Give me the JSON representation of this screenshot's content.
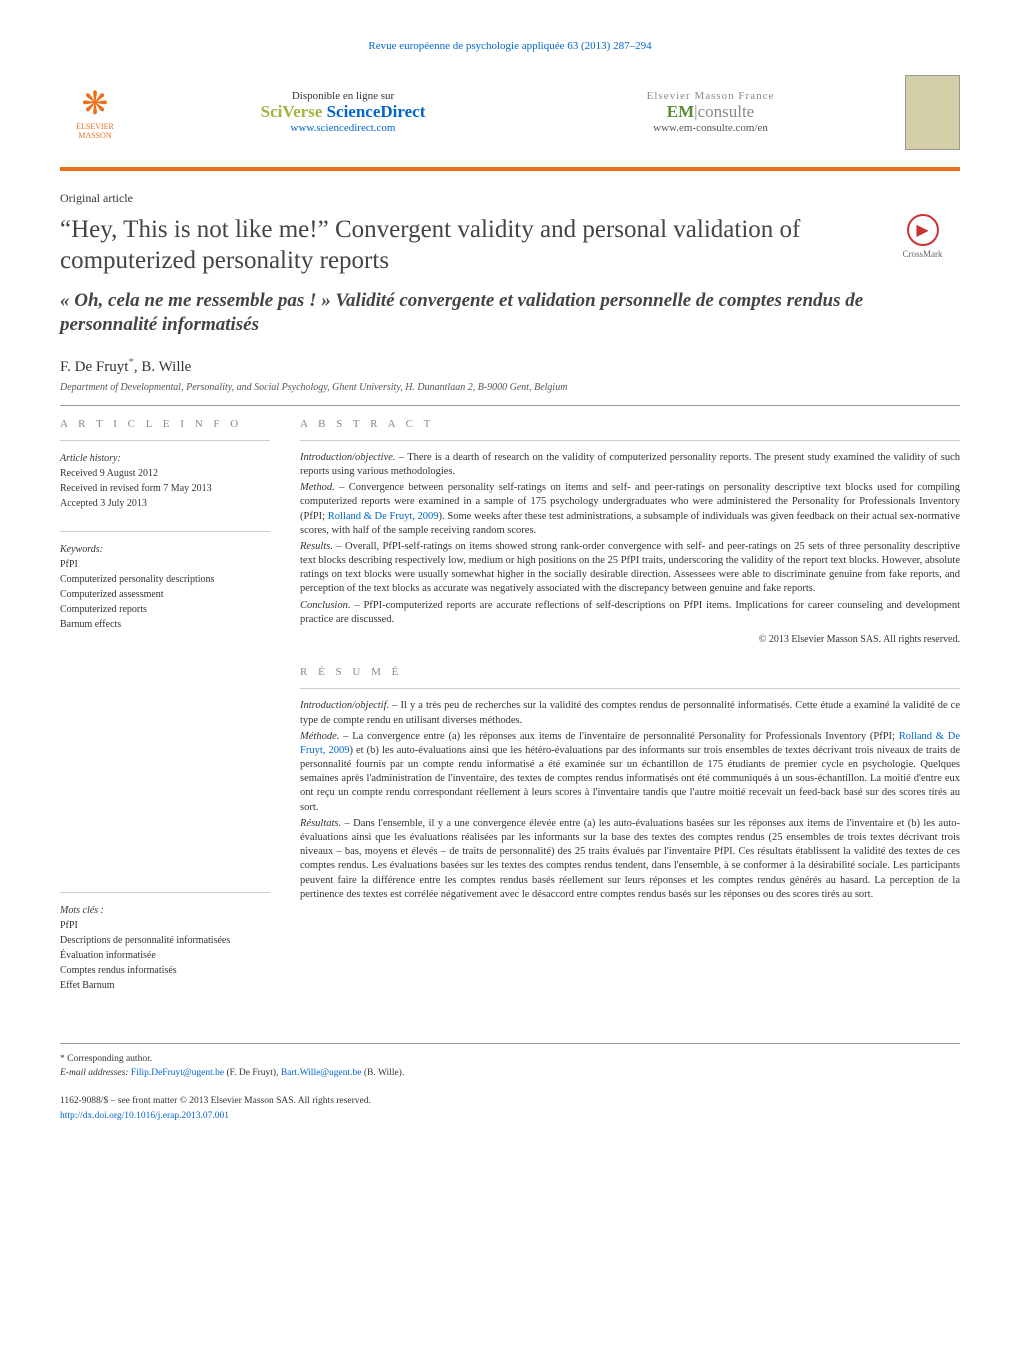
{
  "journal": {
    "citation": "Revue européenne de psychologie appliquée 63 (2013) 287–294",
    "publisher_name": "ELSEVIER MASSON",
    "sciencedirect": {
      "available": "Disponible en ligne sur",
      "brand_sci": "SciVerse",
      "brand_sd": " ScienceDirect",
      "url": "www.sciencedirect.com"
    },
    "emconsulte": {
      "brand_top": "Elsevier Masson France",
      "brand_em": "EM",
      "brand_consulte": "consulte",
      "url": "www.em-consulte.com/en"
    },
    "header_border_color": "#e9711c"
  },
  "article": {
    "type": "Original article",
    "title_en": "“Hey, This is not like me!” Convergent validity and personal validation of computerized personality reports",
    "title_fr": "« Oh, cela ne me ressemble pas ! » Validité convergente et validation personnelle de comptes rendus de personnalité informatisés",
    "crossmark": "CrossMark",
    "authors": "F. De Fruyt*, B. Wille",
    "affiliation": "Department of Developmental, Personality, and Social Psychology, Ghent University, H. Dunantlaan 2, B-9000 Gent, Belgium"
  },
  "info": {
    "heading": "A R T I C L E    I N F O",
    "history_label": "Article history:",
    "received": "Received 9 August 2012",
    "revised": "Received in revised form 7 May 2013",
    "accepted": "Accepted 3 July 2013",
    "keywords_label": "Keywords:",
    "keywords": [
      "PfPI",
      "Computerized personality descriptions",
      "Computerized assessment",
      "Computerized reports",
      "Barnum effects"
    ],
    "motscles_label": "Mots clés :",
    "motscles": [
      "PfPI",
      "Descriptions de personnalité informatisées",
      "Évaluation informatisée",
      "Comptes rendus informatisés",
      "Effet Barnum"
    ]
  },
  "abstract": {
    "heading": "A B S T R A C T",
    "intro_label": "Introduction/objective. – ",
    "intro": "There is a dearth of research on the validity of computerized personality reports. The present study examined the validity of such reports using various methodologies.",
    "method_label": "Method. – ",
    "method_pre": "Convergence between personality self-ratings on items and self- and peer-ratings on personality descriptive text blocks used for compiling computerized reports were examined in a sample of 175 psychology undergraduates who were administered the Personality for Professionals Inventory (PfPI; ",
    "method_ref": "Rolland & De Fruyt, 2009",
    "method_post": "). Some weeks after these test administrations, a subsample of individuals was given feedback on their actual sex-normative scores, with half of the sample receiving random scores.",
    "results_label": "Results. – ",
    "results": "Overall, PfPI-self-ratings on items showed strong rank-order convergence with self- and peer-ratings on 25 sets of three personality descriptive text blocks describing respectively low, medium or high positions on the 25 PfPI traits, underscoring the validity of the report text blocks. However, absolute ratings on text blocks were usually somewhat higher in the socially desirable direction. Assessees were able to discriminate genuine from fake reports, and perception of the text blocks as accurate was negatively associated with the discrepancy between genuine and fake reports.",
    "conclusion_label": "Conclusion. – ",
    "conclusion": "PfPI-computerized reports are accurate reflections of self-descriptions on PfPI items. Implications for career counseling and development practice are discussed.",
    "copyright": "© 2013 Elsevier Masson SAS. All rights reserved."
  },
  "resume": {
    "heading": "R É S U M É",
    "intro_label": "Introduction/objectif. – ",
    "intro": "Il y a très peu de recherches sur la validité des comptes rendus de personnalité informatisés. Cette étude a examiné la validité de ce type de compte rendu en utilisant diverses méthodes.",
    "method_label": "Méthode. – ",
    "method_pre": "La convergence entre (a) les réponses aux items de l'inventaire de personnalité Personality for Professionals Inventory (PfPI; ",
    "method_ref": "Rolland & De Fruyt, 2009",
    "method_post": ") et (b) les auto-évaluations ainsi que les hétéro-évaluations par des informants sur trois ensembles de textes décrivant trois niveaux de traits de personnalité fournis par un compte rendu informatisé a été examinée sur un échantillon de 175 étudiants de premier cycle en psychologie. Quelques semaines après l'administration de l'inventaire, des textes de comptes rendus informatisés ont été communiqués à un sous-échantillon. La moitié d'entre eux ont reçu un compte rendu correspondant réellement à leurs scores à l'inventaire tandis que l'autre moitié recevait un feed-back basé sur des scores tirés au sort.",
    "results_label": "Résultats. – ",
    "results": "Dans l'ensemble, il y a une convergence élevée entre (a) les auto-évaluations basées sur les réponses aux items de l'inventaire et (b) les auto-évaluations ainsi que les évaluations réalisées par les informants sur la base des textes des comptes rendus (25 ensembles de trois textes décrivant trois niveaux – bas, moyens et élevés – de traits de personnalité) des 25 traits évalués par l'inventaire PfPI. Ces résultats établissent la validité des textes de ces comptes rendus. Les évaluations basées sur les textes des comptes rendus tendent, dans l'ensemble, à se conformer à la désirabilité sociale. Les participants peuvent faire la différence entre les comptes rendus basés réellement sur leurs réponses et les comptes rendus générés au hasard. La perception de la pertinence des textes est corrélée négativement avec le désaccord entre comptes rendus basés sur les réponses ou des scores tirés au sort."
  },
  "footnotes": {
    "corresponding": "* Corresponding author.",
    "email_label": "E-mail addresses: ",
    "email1": "Filip.DeFruyt@ugent.be",
    "email1_name": " (F. De Fruyt), ",
    "email2": "Bart.Wille@ugent.be",
    "email2_name": " (B. Wille).",
    "issn": "1162-9088/$ – see front matter © 2013 Elsevier Masson SAS. All rights reserved.",
    "doi": "http://dx.doi.org/10.1016/j.erap.2013.07.001"
  }
}
